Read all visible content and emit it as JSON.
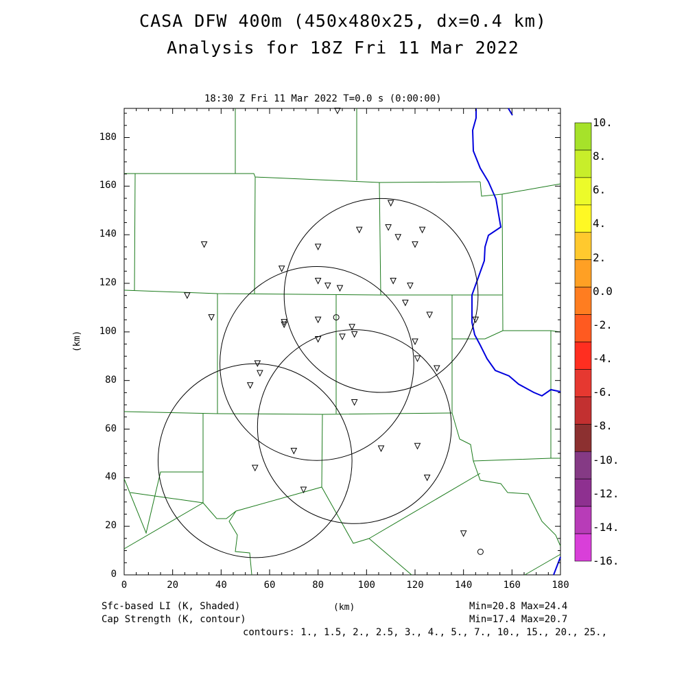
{
  "title_line1": "CASA DFW 400m (450x480x25, dx=0.4 km)",
  "title_line2": "Analysis for 18Z Fri 11 Mar 2022",
  "plot_subtitle": "18:30 Z Fri 11 Mar 2022    T=0.0 s (0:00:00)",
  "x_axis": {
    "label": "(km)",
    "range": [
      0,
      180
    ],
    "ticks": [
      "0",
      "20",
      "40",
      "60",
      "80",
      "100",
      "120",
      "140",
      "160",
      "180"
    ]
  },
  "y_axis": {
    "label": "(km)",
    "range": [
      0,
      192
    ],
    "ticks": [
      "0",
      "20",
      "40",
      "60",
      "80",
      "100",
      "120",
      "140",
      "160",
      "180"
    ]
  },
  "colorbar": {
    "labels": [
      "10.",
      "8.",
      "6.",
      "4.",
      "2.",
      "0.0",
      "-2.",
      "-4.",
      "-6.",
      "-8.",
      "-10.",
      "-12.",
      "-14.",
      "-16."
    ],
    "colors": [
      "#a6e22a",
      "#c8ee2a",
      "#ecfb2a",
      "#fff824",
      "#ffc92e",
      "#ffa024",
      "#ff7d20",
      "#ff5a20",
      "#ff2e20",
      "#e63830",
      "#c23030",
      "#8c3030",
      "#853a85",
      "#8e3090",
      "#b83cb8",
      "#d93fd9"
    ]
  },
  "footer": {
    "left1": "Sfc-based LI (K, Shaded)",
    "left2": "Cap Strength (K, contour)",
    "center": "(km)",
    "right1": "Min=20.8 Max=24.4",
    "right2": "Min=17.4 Max=20.7",
    "contours": "contours: 1., 1.5, 2., 2.5, 3., 4., 5., 7., 10., 15., 20., 25.,"
  },
  "map": {
    "radar_rings_km": [
      {
        "center": [
          106,
          115
        ],
        "radius": 40
      },
      {
        "center": [
          79.5,
          87
        ],
        "radius": 40
      },
      {
        "center": [
          95,
          61
        ],
        "radius": 40
      },
      {
        "center": [
          54,
          47
        ],
        "radius": 40
      }
    ],
    "stations_km": [
      [
        88,
        191
      ],
      [
        110,
        153
      ],
      [
        97,
        142
      ],
      [
        109,
        143
      ],
      [
        113,
        139
      ],
      [
        123,
        142
      ],
      [
        120,
        136
      ],
      [
        80,
        135
      ],
      [
        65,
        126
      ],
      [
        80,
        121
      ],
      [
        84,
        119
      ],
      [
        89,
        118
      ],
      [
        111,
        121
      ],
      [
        118,
        119
      ],
      [
        33,
        136
      ],
      [
        26,
        115
      ],
      [
        36,
        106
      ],
      [
        66,
        104
      ],
      [
        66,
        103
      ],
      [
        80,
        105
      ],
      [
        94,
        102
      ],
      [
        95,
        99
      ],
      [
        90,
        98
      ],
      [
        80,
        97
      ],
      [
        116,
        112
      ],
      [
        126,
        107
      ],
      [
        145,
        105
      ],
      [
        120,
        96
      ],
      [
        121,
        89
      ],
      [
        129,
        85
      ],
      [
        55,
        87
      ],
      [
        56,
        83
      ],
      [
        52,
        78
      ],
      [
        95,
        71
      ],
      [
        106,
        52
      ],
      [
        121,
        53
      ],
      [
        70,
        51
      ],
      [
        54,
        44
      ],
      [
        74,
        35
      ],
      [
        125,
        40
      ],
      [
        140,
        17
      ]
    ],
    "circle_markers_km": [
      [
        87.5,
        106
      ],
      [
        147,
        9.5
      ]
    ]
  }
}
